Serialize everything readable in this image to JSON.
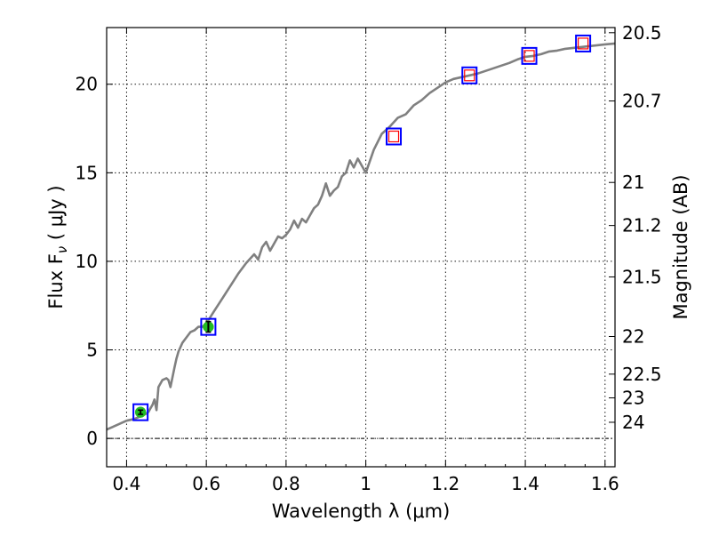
{
  "chart_data": {
    "type": "line",
    "xlabel": "Wavelength  λ (μm)",
    "ylabel_left": "Flux  F",
    "ylabel_left_sub": "ν",
    "ylabel_left_unit": "  ( μJy )",
    "ylabel_right": "Magnitude (AB)",
    "xlim": [
      0.35,
      1.625
    ],
    "ylim": [
      -1.6,
      23.2
    ],
    "grid": true,
    "x_ticks": [
      0.4,
      0.6,
      0.8,
      1.0,
      1.2,
      1.4,
      1.6
    ],
    "x_tick_labels": [
      "0.4",
      "0.6",
      "0.8",
      "1",
      "1.2",
      "1.4",
      "1.6"
    ],
    "y_ticks": [
      0,
      5,
      10,
      15,
      20
    ],
    "y_tick_labels": [
      "0",
      "5",
      "10",
      "15",
      "20"
    ],
    "mag_ticks": [
      20.5,
      20.7,
      21,
      21.2,
      21.5,
      22,
      22.5,
      23,
      24
    ],
    "mag_tick_labels": [
      "20.5",
      "20.7",
      "21",
      "21.2",
      "21.5",
      "22",
      "22.5",
      "23",
      "24"
    ],
    "zero_line_y": 0,
    "series": [
      {
        "kind": "model-spectrum",
        "color": "#808080",
        "x": [
          0.35,
          0.36,
          0.37,
          0.38,
          0.39,
          0.4,
          0.41,
          0.42,
          0.43,
          0.44,
          0.45,
          0.455,
          0.46,
          0.465,
          0.47,
          0.475,
          0.48,
          0.49,
          0.5,
          0.505,
          0.51,
          0.52,
          0.525,
          0.53,
          0.54,
          0.55,
          0.56,
          0.57,
          0.58,
          0.59,
          0.6,
          0.62,
          0.64,
          0.66,
          0.68,
          0.7,
          0.72,
          0.73,
          0.74,
          0.75,
          0.76,
          0.78,
          0.79,
          0.8,
          0.81,
          0.82,
          0.83,
          0.84,
          0.85,
          0.86,
          0.87,
          0.88,
          0.89,
          0.9,
          0.91,
          0.92,
          0.93,
          0.94,
          0.95,
          0.96,
          0.97,
          0.98,
          0.99,
          1.0,
          1.02,
          1.04,
          1.06,
          1.08,
          1.1,
          1.12,
          1.14,
          1.16,
          1.18,
          1.2,
          1.22,
          1.24,
          1.26,
          1.28,
          1.3,
          1.32,
          1.34,
          1.36,
          1.38,
          1.4,
          1.42,
          1.44,
          1.46,
          1.48,
          1.5,
          1.52,
          1.54,
          1.56,
          1.58,
          1.6,
          1.625
        ],
        "y": [
          0.5,
          0.6,
          0.7,
          0.8,
          0.9,
          1.0,
          1.05,
          1.1,
          1.2,
          1.3,
          1.4,
          1.5,
          1.7,
          1.9,
          2.2,
          1.6,
          2.9,
          3.3,
          3.4,
          3.3,
          2.9,
          4.0,
          4.5,
          4.9,
          5.4,
          5.7,
          6.0,
          6.1,
          6.3,
          6.3,
          6.5,
          7.2,
          7.9,
          8.6,
          9.3,
          9.9,
          10.4,
          10.1,
          10.8,
          11.1,
          10.6,
          11.4,
          11.3,
          11.5,
          11.8,
          12.3,
          11.9,
          12.4,
          12.2,
          12.6,
          13.0,
          13.2,
          13.7,
          14.4,
          13.7,
          14.0,
          14.2,
          14.8,
          15.0,
          15.7,
          15.3,
          15.8,
          15.4,
          15.0,
          16.3,
          17.2,
          17.6,
          18.1,
          18.3,
          18.8,
          19.1,
          19.5,
          19.8,
          20.1,
          20.3,
          20.4,
          20.5,
          20.6,
          20.75,
          20.9,
          21.05,
          21.2,
          21.4,
          21.55,
          21.6,
          21.7,
          21.85,
          21.9,
          22.0,
          22.05,
          22.1,
          22.15,
          22.2,
          22.25,
          22.3
        ]
      }
    ],
    "photometry": [
      {
        "x": 0.435,
        "y": 1.48,
        "err": 0.12,
        "marker": "blue-square",
        "detected": true
      },
      {
        "x": 0.605,
        "y": 6.3,
        "err": 0.3,
        "marker": "blue-square",
        "detected": true
      },
      {
        "x": 1.07,
        "y": 17.05,
        "marker": "blue-square",
        "detected": false
      },
      {
        "x": 1.26,
        "y": 20.5,
        "marker": "blue-square",
        "detected": false
      },
      {
        "x": 1.41,
        "y": 21.6,
        "marker": "blue-square",
        "detected": false
      },
      {
        "x": 1.545,
        "y": 22.3,
        "marker": "blue-square",
        "detected": false
      }
    ],
    "colors": {
      "model": "#808080",
      "obs_square": "#0000ff",
      "model_square": "#ff0000",
      "detected_fill": "#22bb22",
      "axis": "#000000"
    }
  }
}
